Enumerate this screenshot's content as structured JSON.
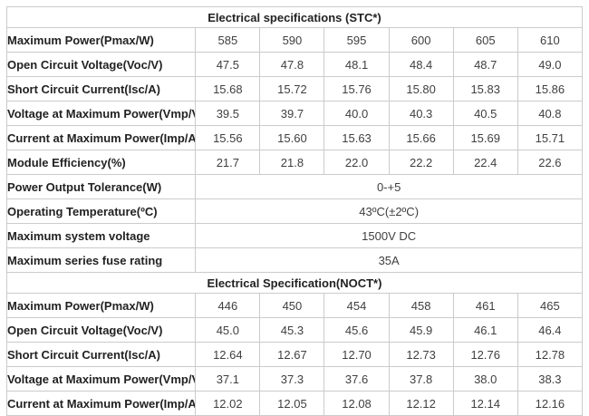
{
  "colors": {
    "background": "#ffffff",
    "border": "#cbcbcb",
    "label_text": "#222222",
    "value_text": "#3f3f3f"
  },
  "stc": {
    "title": "Electrical specifications (STC*)",
    "rows": [
      {
        "label": "Maximum Power(Pmax/W)",
        "values": [
          "585",
          "590",
          "595",
          "600",
          "605",
          "610"
        ]
      },
      {
        "label": "Open Circuit Voltage(Voc/V)",
        "values": [
          "47.5",
          "47.8",
          "48.1",
          "48.4",
          "48.7",
          "49.0"
        ]
      },
      {
        "label": "Short Circuit Current(Isc/A)",
        "values": [
          "15.68",
          "15.72",
          "15.76",
          "15.80",
          "15.83",
          "15.86"
        ]
      },
      {
        "label": "Voltage at Maximum Power(Vmp/V)",
        "values": [
          "39.5",
          "39.7",
          "40.0",
          "40.3",
          "40.5",
          "40.8"
        ]
      },
      {
        "label": "Current at Maximum Power(Imp/A)",
        "values": [
          "15.56",
          "15.60",
          "15.63",
          "15.66",
          "15.69",
          "15.71"
        ]
      },
      {
        "label": "Module Efficiency(%)",
        "values": [
          "21.7",
          "21.8",
          "22.0",
          "22.2",
          "22.4",
          "22.6"
        ]
      }
    ],
    "merged_rows": [
      {
        "label": "Power Output Tolerance(W)",
        "value": "0-+5"
      },
      {
        "label": "Operating Temperature(ºC)",
        "value": "43ºC(±2ºC)"
      },
      {
        "label": "Maximum system voltage",
        "value": "1500V DC"
      },
      {
        "label": "Maximum series fuse rating",
        "value": "35A"
      }
    ]
  },
  "noct": {
    "title": "Electrical Specification(NOCT*)",
    "rows": [
      {
        "label": "Maximum Power(Pmax/W)",
        "values": [
          "446",
          "450",
          "454",
          "458",
          "461",
          "465"
        ]
      },
      {
        "label": "Open Circuit Voltage(Voc/V)",
        "values": [
          "45.0",
          "45.3",
          "45.6",
          "45.9",
          "46.1",
          "46.4"
        ]
      },
      {
        "label": "Short Circuit Current(Isc/A)",
        "values": [
          "12.64",
          "12.67",
          "12.70",
          "12.73",
          "12.76",
          "12.78"
        ]
      },
      {
        "label": "Voltage at Maximum Power(Vmp/V)",
        "values": [
          "37.1",
          "37.3",
          "37.6",
          "37.8",
          "38.0",
          "38.3"
        ]
      },
      {
        "label": "Current at Maximum Power(Imp/A)",
        "values": [
          "12.02",
          "12.05",
          "12.08",
          "12.12",
          "12.14",
          "12.16"
        ]
      }
    ]
  }
}
